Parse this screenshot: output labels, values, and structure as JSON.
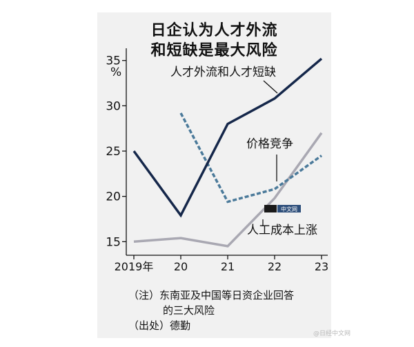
{
  "chart_data": {
    "type": "line",
    "title_line1": "日企认为人才外流",
    "title_line2": "和短缺是最大风险",
    "unit": "%",
    "x": [
      "2019年",
      "20",
      "21",
      "22",
      "23"
    ],
    "yticks": [
      15,
      20,
      25,
      30,
      35
    ],
    "ylim": [
      13.5,
      36.5
    ],
    "series": [
      {
        "name": "人才外流和人才短缺",
        "color": "#15274a",
        "style": "solid",
        "values": [
          25.0,
          17.9,
          28.0,
          30.8,
          35.2
        ]
      },
      {
        "name": "价格竞争",
        "color": "#4b7a9a",
        "style": "dashed",
        "values": [
          null,
          29.2,
          19.4,
          20.8,
          24.5
        ]
      },
      {
        "name": "人工成本上涨",
        "color": "#a9a8b2",
        "style": "solid",
        "values": [
          15.0,
          15.4,
          14.5,
          19.8,
          27.0
        ]
      }
    ]
  },
  "notes": {
    "line1": "（注）东南亚及中国等日资企业回答",
    "line2": "的三大风险",
    "line3": "（出处）德勤"
  },
  "logo": {
    "text": "中文网"
  },
  "watermark": "@日经中文网"
}
